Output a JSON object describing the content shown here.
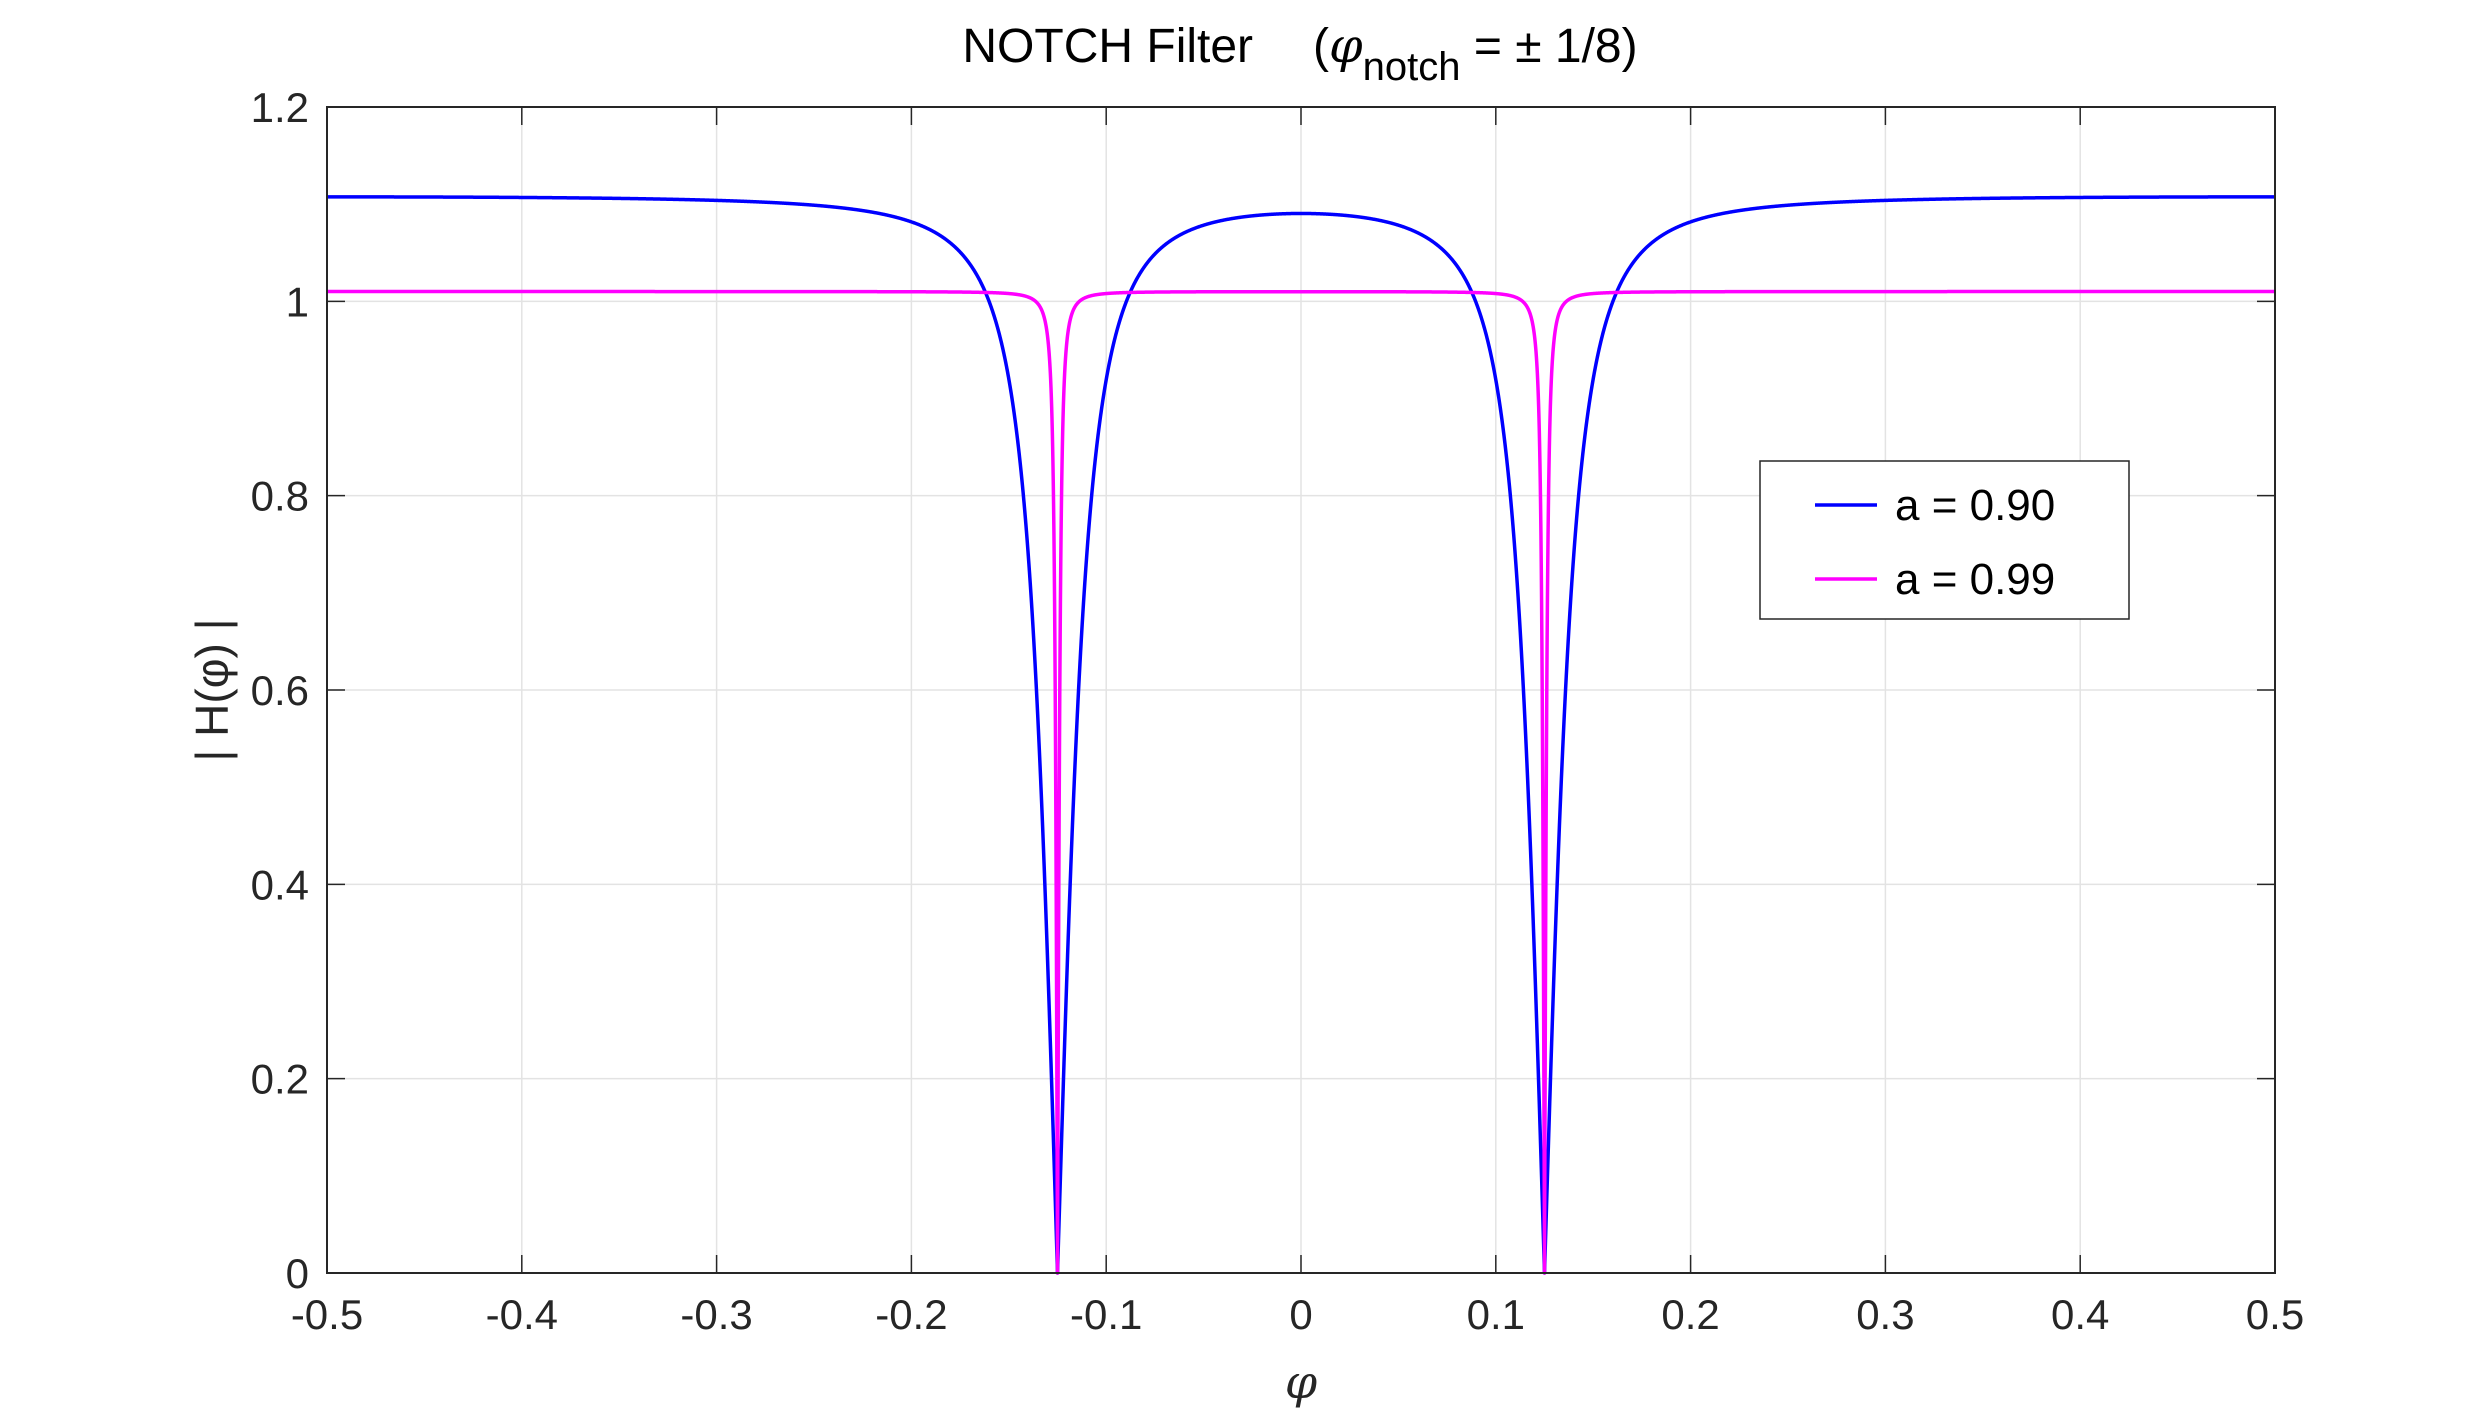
{
  "chart_data": {
    "type": "line",
    "title": "NOTCH Filter",
    "title_suffix": {
      "open": "(",
      "symbol": "φ",
      "subscript": "notch",
      "rest": " = ± 1/8)"
    },
    "xlabel": "φ",
    "ylabel": "| H(φ) |",
    "xlim": [
      -0.5,
      0.5
    ],
    "ylim": [
      0,
      1.2
    ],
    "xticks": [
      -0.5,
      -0.4,
      -0.3,
      -0.2,
      -0.1,
      0,
      0.1,
      0.2,
      0.3,
      0.4,
      0.5
    ],
    "xtick_labels": [
      "-0.5",
      "-0.4",
      "-0.3",
      "-0.2",
      "-0.1",
      "0",
      "0.1",
      "0.2",
      "0.3",
      "0.4",
      "0.5"
    ],
    "yticks": [
      0,
      0.2,
      0.4,
      0.6,
      0.8,
      1,
      1.2
    ],
    "ytick_labels": [
      "0",
      "0.2",
      "0.4",
      "0.6",
      "0.8",
      "1",
      "1.2"
    ],
    "grid": true,
    "notch_frequency": 0.125,
    "legend_position": "right",
    "series": [
      {
        "name": "a = 0.90",
        "a": 0.9,
        "color": "#0000ff",
        "sample_points": {
          "x": [
            -0.5,
            -0.2,
            -0.125,
            0,
            0.125,
            0.2,
            0.5
          ],
          "y": [
            1.108,
            1.085,
            0,
            1.091,
            0,
            1.085,
            1.108
          ]
        }
      },
      {
        "name": "a = 0.99",
        "a": 0.99,
        "color": "#ff00ff",
        "sample_points": {
          "x": [
            -0.5,
            -0.14,
            -0.125,
            0,
            0.125,
            0.14,
            0.5
          ],
          "y": [
            1.01,
            1.005,
            0,
            1.01,
            0,
            1.005,
            1.01
          ]
        }
      }
    ]
  }
}
